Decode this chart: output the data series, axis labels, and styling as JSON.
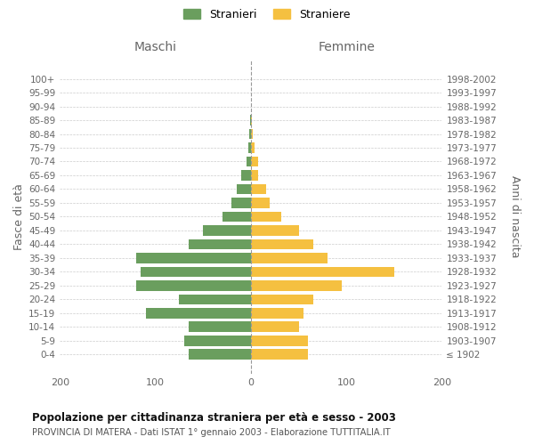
{
  "age_groups": [
    "100+",
    "95-99",
    "90-94",
    "85-89",
    "80-84",
    "75-79",
    "70-74",
    "65-69",
    "60-64",
    "55-59",
    "50-54",
    "45-49",
    "40-44",
    "35-39",
    "30-34",
    "25-29",
    "20-24",
    "15-19",
    "10-14",
    "5-9",
    "0-4"
  ],
  "birth_years": [
    "≤ 1902",
    "1903-1907",
    "1908-1912",
    "1913-1917",
    "1918-1922",
    "1923-1927",
    "1928-1932",
    "1933-1937",
    "1938-1942",
    "1943-1947",
    "1948-1952",
    "1953-1957",
    "1958-1962",
    "1963-1967",
    "1968-1972",
    "1973-1977",
    "1978-1982",
    "1983-1987",
    "1988-1992",
    "1993-1997",
    "1998-2002"
  ],
  "males": [
    0,
    0,
    0,
    1,
    2,
    3,
    5,
    10,
    15,
    20,
    30,
    50,
    65,
    120,
    115,
    120,
    75,
    110,
    65,
    70,
    65
  ],
  "females": [
    0,
    0,
    0,
    1,
    2,
    4,
    8,
    8,
    16,
    20,
    32,
    50,
    65,
    80,
    150,
    95,
    65,
    55,
    50,
    60,
    60
  ],
  "male_color": "#6a9e5e",
  "female_color": "#f5c040",
  "male_label": "Stranieri",
  "female_label": "Straniere",
  "maschi_label": "Maschi",
  "femmine_label": "Femmine",
  "ylabel_left": "Fasce di età",
  "ylabel_right": "Anni di nascita",
  "title": "Popolazione per cittadinanza straniera per età e sesso - 2003",
  "subtitle": "PROVINCIA DI MATERA - Dati ISTAT 1° gennaio 2003 - Elaborazione TUTTITALIA.IT",
  "xlim": 200,
  "bg_color": "#ffffff",
  "grid_color": "#cccccc",
  "label_color": "#666666",
  "center_line_color": "#999999"
}
